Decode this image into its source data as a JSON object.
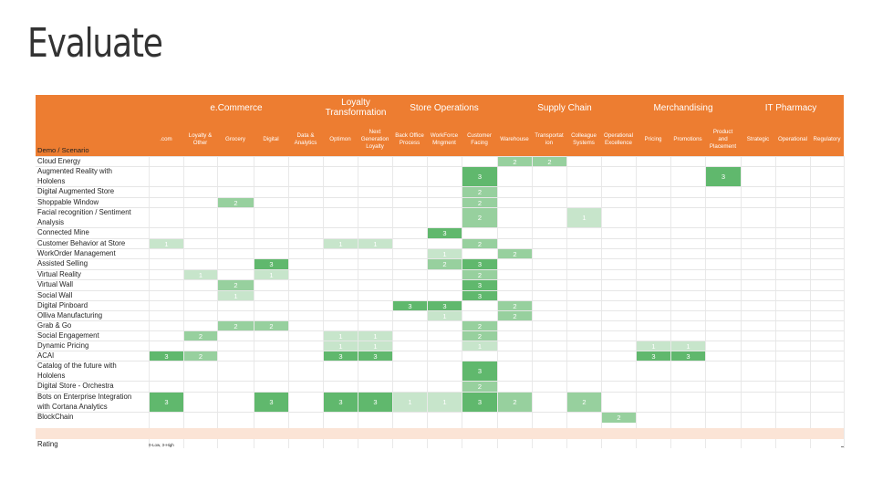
{
  "title": "Evaluate",
  "groups": [
    {
      "label": "e.Commerce"
    },
    {
      "label": "Loyalty\nTransformation"
    },
    {
      "label": "Store Operations"
    },
    {
      "label": "Supply Chain"
    },
    {
      "label": "Merchandising"
    },
    {
      "label": "IT Pharmacy"
    }
  ],
  "columns": [
    ".com",
    "Loyalty &\nOther",
    "Grocery",
    "Digital",
    "Data &\nAnalytics",
    "Optimon",
    "Next\nGeneration\nLoyalty",
    "Back Office\nProcess",
    "WorkForce\nMngment",
    "Customer\nFacing",
    "Warehouse",
    "Transportat\nion",
    "Colleague\nSystems",
    "Operational\nExcellence",
    "Pricing",
    "Promotions",
    "Product\nand\nPlacement",
    "Strategic",
    "Operational",
    "Regulatory"
  ],
  "corner_label": "Demo / Scenario",
  "rows": [
    {
      "label": "Cloud Energy",
      "cells": [
        [
          10,
          "2"
        ],
        [
          11,
          "2"
        ]
      ]
    },
    {
      "label": "Augmented Reality with\nHololens",
      "cells": [
        [
          9,
          "3"
        ],
        [
          16,
          "3"
        ]
      ]
    },
    {
      "label": "Digital Augmented Store",
      "cells": [
        [
          9,
          "2"
        ]
      ]
    },
    {
      "label": "Shoppable Window",
      "cells": [
        [
          2,
          "2"
        ],
        [
          9,
          "2"
        ]
      ]
    },
    {
      "label": "Facial recognition / Sentiment\nAnalysis",
      "cells": [
        [
          9,
          "2"
        ],
        [
          12,
          "1"
        ]
      ]
    },
    {
      "label": "Connected Mine",
      "cells": [
        [
          8,
          "3"
        ]
      ]
    },
    {
      "label": "Customer Behavior at Store",
      "cells": [
        [
          0,
          "1"
        ],
        [
          5,
          "1"
        ],
        [
          6,
          "1"
        ],
        [
          9,
          "2"
        ]
      ]
    },
    {
      "label": "WorkOrder Management",
      "cells": [
        [
          8,
          "1"
        ],
        [
          10,
          "2"
        ]
      ]
    },
    {
      "label": "Assisted Selling",
      "cells": [
        [
          3,
          "3"
        ],
        [
          8,
          "2"
        ],
        [
          9,
          "3"
        ]
      ]
    },
    {
      "label": "Virtual Reality",
      "cells": [
        [
          1,
          "1"
        ],
        [
          3,
          "1"
        ],
        [
          9,
          "2"
        ]
      ]
    },
    {
      "label": "Virtual Wall",
      "cells": [
        [
          2,
          "2"
        ],
        [
          9,
          "3"
        ]
      ]
    },
    {
      "label": "Social Wall",
      "cells": [
        [
          2,
          "1"
        ],
        [
          9,
          "3"
        ]
      ]
    },
    {
      "label": "Digital Pinboard",
      "cells": [
        [
          7,
          "3"
        ],
        [
          8,
          "3"
        ],
        [
          10,
          "2"
        ]
      ]
    },
    {
      "label": "Olliva Manufacturing",
      "cells": [
        [
          8,
          "1"
        ],
        [
          10,
          "2"
        ]
      ]
    },
    {
      "label": "Grab & Go",
      "cells": [
        [
          2,
          "2"
        ],
        [
          3,
          "2"
        ],
        [
          9,
          "2"
        ]
      ]
    },
    {
      "label": "Social Engagement",
      "cells": [
        [
          1,
          "2"
        ],
        [
          5,
          "1"
        ],
        [
          6,
          "1"
        ],
        [
          9,
          "2"
        ]
      ]
    },
    {
      "label": "Dynamic Pricing",
      "cells": [
        [
          5,
          "1"
        ],
        [
          6,
          "1"
        ],
        [
          9,
          "1"
        ],
        [
          14,
          "1"
        ],
        [
          15,
          "1"
        ]
      ]
    },
    {
      "label": "ACAI",
      "cells": [
        [
          0,
          "3"
        ],
        [
          1,
          "2"
        ],
        [
          5,
          "3"
        ],
        [
          6,
          "3"
        ],
        [
          14,
          "3"
        ],
        [
          15,
          "3"
        ]
      ]
    },
    {
      "label": "Catalog of the future with\nHololens",
      "cells": [
        [
          9,
          "3"
        ]
      ]
    },
    {
      "label": "Digital Store - Orchestra",
      "cells": [
        [
          9,
          "2"
        ]
      ]
    },
    {
      "label": "Bots on Enterprise Integration\nwith Cortana Analytics",
      "cells": [
        [
          0,
          "3"
        ],
        [
          3,
          "3"
        ],
        [
          5,
          "3"
        ],
        [
          6,
          "3"
        ],
        [
          7,
          "1"
        ],
        [
          8,
          "1"
        ],
        [
          9,
          "3"
        ],
        [
          10,
          "2"
        ],
        [
          12,
          "2"
        ]
      ]
    },
    {
      "label": "BlockChain",
      "cells": [
        [
          13,
          "2"
        ]
      ]
    }
  ],
  "rating_label": "Rating",
  "rating_legend": "0-Low, 3-High"
}
